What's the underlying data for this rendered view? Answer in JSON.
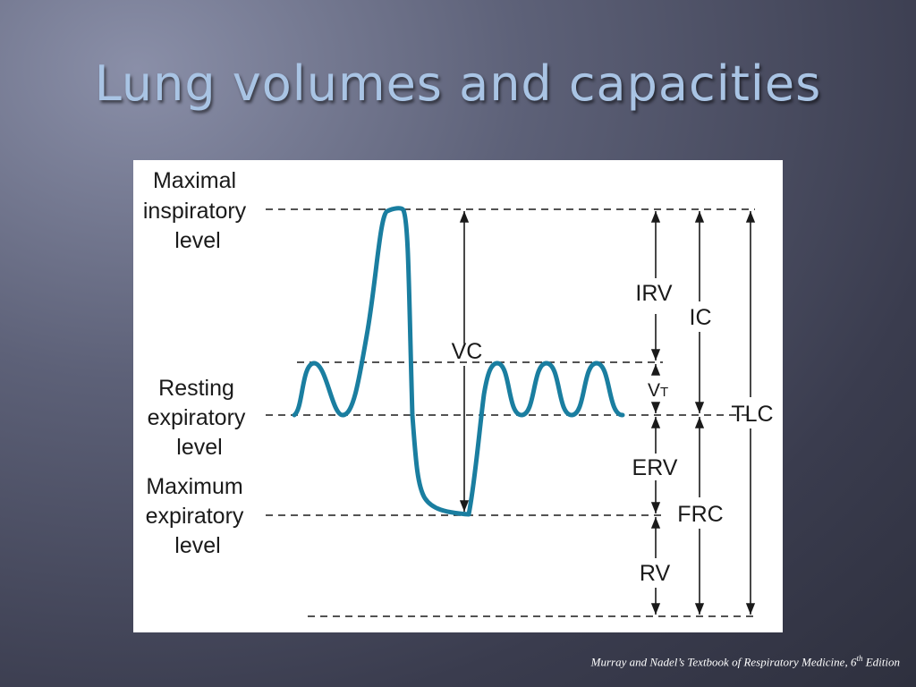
{
  "slide": {
    "title": "Lung volumes and capacities"
  },
  "diagram": {
    "level_labels": {
      "max_insp": [
        "Maximal",
        "inspiratory",
        "level"
      ],
      "rest_exp": [
        "Resting",
        "expiratory",
        "level"
      ],
      "max_exp": [
        "Maximum",
        "expiratory",
        "level"
      ]
    },
    "volumes": {
      "vc": "VC",
      "irv": "IRV",
      "vt_main": "V",
      "vt_sub": "T",
      "erv": "ERV",
      "rv": "RV"
    },
    "capacities": {
      "ic": "IC",
      "frc": "FRC",
      "tlc": "TLC"
    },
    "colors": {
      "trace": "#1a7ea0",
      "lines": "#1a1a1a"
    }
  },
  "citation": {
    "text_before": "Murray and Nadel’s Textbook of Respiratory Medicine, 6",
    "superscript": "th",
    "text_after": " Edition"
  }
}
